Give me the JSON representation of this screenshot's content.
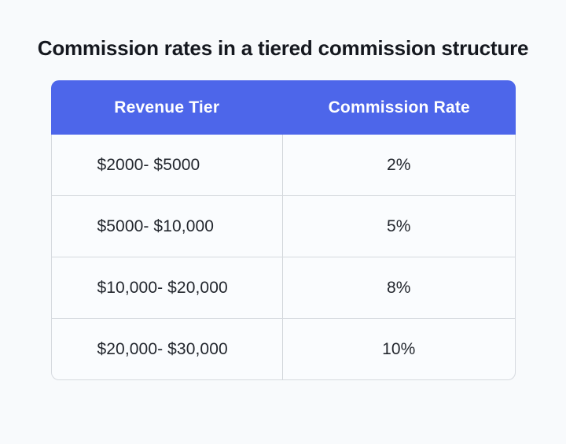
{
  "page": {
    "background": "#F8FAFC"
  },
  "title": "Commission rates in a tiered commission structure",
  "table": {
    "header_bg": "#4D66EA",
    "header_text_color": "#FFFFFF",
    "border_color": "#D6DADF",
    "body_bg": "#FAFCFE",
    "body_text_color": "#23272E",
    "columns": [
      "Revenue Tier",
      "Commission Rate"
    ],
    "rows": [
      {
        "tier": "$2000- $5000",
        "rate": "2%"
      },
      {
        "tier": "$5000- $10,000",
        "rate": "5%"
      },
      {
        "tier": "$10,000- $20,000",
        "rate": "8%"
      },
      {
        "tier": "$20,000- $30,000",
        "rate": "10%"
      }
    ]
  },
  "chart_data": {
    "type": "table",
    "title": "Commission rates in a tiered commission structure",
    "columns": [
      "Revenue Tier",
      "Commission Rate"
    ],
    "rows": [
      [
        "$2000- $5000",
        "2%"
      ],
      [
        "$5000- $10,000",
        "5%"
      ],
      [
        "$10,000- $20,000",
        "8%"
      ],
      [
        "$20,000- $30,000",
        "10%"
      ]
    ]
  }
}
